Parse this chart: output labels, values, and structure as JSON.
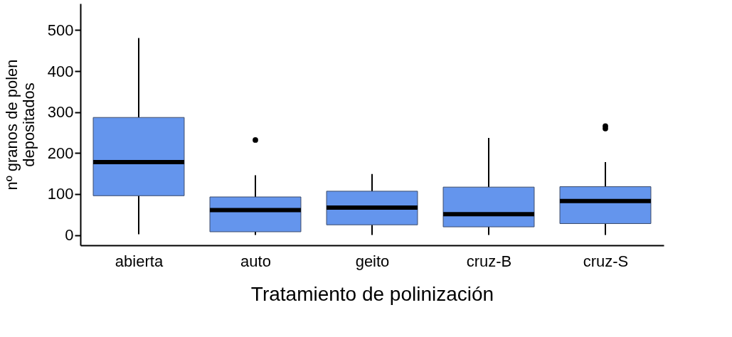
{
  "chart_data": {
    "type": "box",
    "xlabel": "Tratamiento de polinización",
    "ylabel": "nº granos de polen\ndepositados",
    "categories": [
      "abierta",
      "auto",
      "geito",
      "cruz-B",
      "cruz-S"
    ],
    "ylim": [
      -25,
      565
    ],
    "yticks": [
      0,
      100,
      200,
      300,
      400,
      500
    ],
    "series": [
      {
        "color": "#6495ed",
        "boxes": [
          {
            "low": 2,
            "q1": 96,
            "median": 178,
            "q3": 287,
            "high": 481
          },
          {
            "low": 0,
            "q1": 8,
            "median": 61,
            "q3": 93,
            "high": 146,
            "outliers": [
              232
            ]
          },
          {
            "low": 0,
            "q1": 25,
            "median": 67,
            "q3": 107,
            "high": 149
          },
          {
            "low": 0,
            "q1": 20,
            "median": 51,
            "q3": 117,
            "high": 237
          },
          {
            "low": 0,
            "q1": 28,
            "median": 83,
            "q3": 118,
            "high": 178,
            "outliers": [
              260,
              266
            ]
          }
        ]
      }
    ]
  }
}
